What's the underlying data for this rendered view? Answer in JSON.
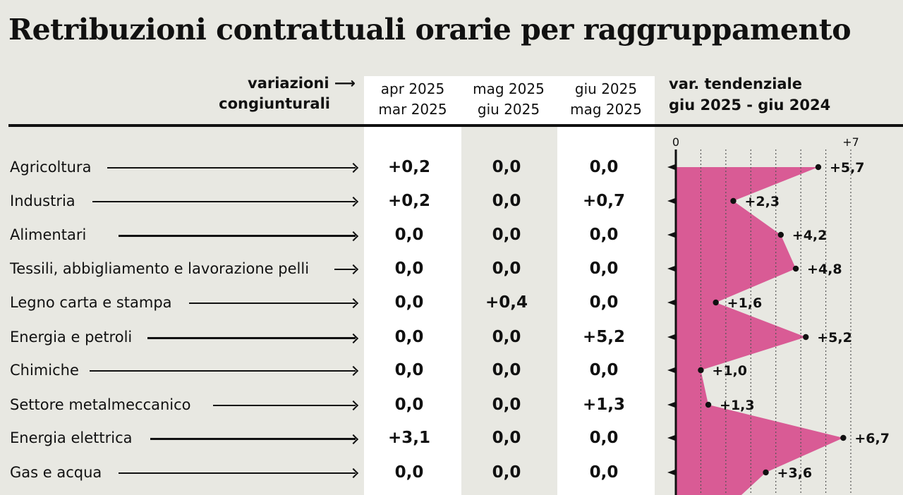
{
  "title": "Retribuzioni contrattuali orarie per raggruppamento",
  "header": {
    "note_line1": "variazioni ⟶",
    "note_line2": "congiunturali",
    "columns": [
      {
        "line1": "apr 2025",
        "line2": "mar 2025"
      },
      {
        "line1": "mag 2025",
        "line2": "giu 2025"
      },
      {
        "line1": "giu 2025",
        "line2": "mag 2025"
      }
    ],
    "chart_title_line1": "var. tendenziale",
    "chart_title_line2": "giu 2025 - giu 2024"
  },
  "chart_data": [
    {
      "type": "table",
      "columns": [
        "apr 2025 / mar 2025",
        "mag 2025 / giu 2025",
        "giu 2025 / mag 2025"
      ],
      "rows": [
        {
          "label": "Agricoltura",
          "values": [
            "+0,2",
            "0,0",
            "0,0"
          ]
        },
        {
          "label": "Industria",
          "values": [
            "+0,2",
            "0,0",
            "+0,7"
          ]
        },
        {
          "label": "Alimentari",
          "values": [
            "0,0",
            "0,0",
            "0,0"
          ]
        },
        {
          "label": "Tessili, abbigliamento e lavorazione pelli",
          "values": [
            "0,0",
            "0,0",
            "0,0"
          ]
        },
        {
          "label": "Legno carta e stampa",
          "values": [
            "0,0",
            "+0,4",
            "0,0"
          ]
        },
        {
          "label": "Energia e petroli",
          "values": [
            "0,0",
            "0,0",
            "+5,2"
          ]
        },
        {
          "label": "Chimiche",
          "values": [
            "0,0",
            "0,0",
            "0,0"
          ]
        },
        {
          "label": "Settore metalmeccanico",
          "values": [
            "0,0",
            "0,0",
            "+1,3"
          ]
        },
        {
          "label": "Energia elettrica",
          "values": [
            "+3,1",
            "0,0",
            "0,0"
          ]
        },
        {
          "label": "Gas e acqua",
          "values": [
            "0,0",
            "0,0",
            "0,0"
          ]
        }
      ]
    },
    {
      "type": "area",
      "title": "var. tendenziale giu 2025 - giu 2024",
      "orientation": "horizontal",
      "categories": [
        "Agricoltura",
        "Industria",
        "Alimentari",
        "Tessili, abbigliamento e lavorazione pelli",
        "Legno carta e stampa",
        "Energia e petroli",
        "Chimiche",
        "Settore metalmeccanico",
        "Energia elettrica",
        "Gas e acqua"
      ],
      "values": [
        5.7,
        2.3,
        4.2,
        4.8,
        1.6,
        5.2,
        1.0,
        1.3,
        6.7,
        3.6
      ],
      "value_labels": [
        "+5,7",
        "+2,3",
        "+4,2",
        "+4,8",
        "+1,6",
        "+5,2",
        "+1,0",
        "+1,3",
        "+6,7",
        "+3,6"
      ],
      "axis_ticks": [
        "0",
        "+7"
      ],
      "xlim": [
        0,
        7
      ],
      "grid": true,
      "fill_color": "#d95b95",
      "continues_below": 2.5
    }
  ]
}
